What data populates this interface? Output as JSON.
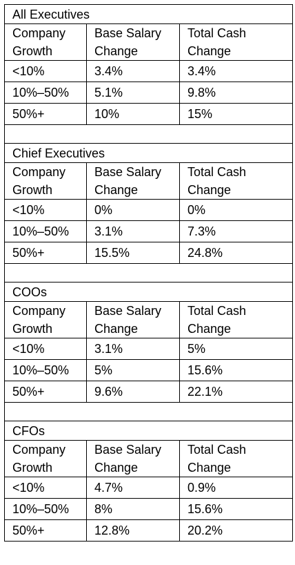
{
  "sections": [
    {
      "title": "All Executives",
      "headers": [
        "Company Growth",
        "Base Salary Change",
        "Total Cash Change"
      ],
      "headers_lines": [
        [
          "Company",
          "Growth"
        ],
        [
          "Base Salary",
          "Change"
        ],
        [
          "Total Cash",
          "Change"
        ]
      ],
      "rows": [
        [
          "<10%",
          "3.4%",
          "3.4%"
        ],
        [
          "10%–50%",
          "5.1%",
          "9.8%"
        ],
        [
          "50%+",
          "10%",
          "15%"
        ]
      ]
    },
    {
      "title": "Chief Executives",
      "headers": [
        "Company Growth",
        "Base Salary Change",
        "Total Cash Change"
      ],
      "headers_lines": [
        [
          "Company",
          "Growth"
        ],
        [
          "Base Salary",
          "Change"
        ],
        [
          "Total Cash",
          "Change"
        ]
      ],
      "rows": [
        [
          "<10%",
          "0%",
          "0%"
        ],
        [
          "10%–50%",
          "3.1%",
          "7.3%"
        ],
        [
          "50%+",
          "15.5%",
          "24.8%"
        ]
      ]
    },
    {
      "title": "COOs",
      "headers": [
        "Company Growth",
        "Base Salary Change",
        "Total Cash Change"
      ],
      "headers_lines": [
        [
          "Company",
          "Growth"
        ],
        [
          "Base Salary",
          "Change"
        ],
        [
          "Total Cash",
          "Change"
        ]
      ],
      "rows": [
        [
          "<10%",
          "3.1%",
          "5%"
        ],
        [
          "10%–50%",
          "5%",
          "15.6%"
        ],
        [
          "50%+",
          "9.6%",
          "22.1%"
        ]
      ]
    },
    {
      "title": "CFOs",
      "headers": [
        "Company Growth",
        "Base Salary Change",
        "Total Cash Change"
      ],
      "headers_lines": [
        [
          "Company",
          "Growth"
        ],
        [
          "Base Salary",
          "Change"
        ],
        [
          "Total Cash",
          "Change"
        ]
      ],
      "rows": [
        [
          "<10%",
          "4.7%",
          "0.9%"
        ],
        [
          "10%–50%",
          "8%",
          "15.6%"
        ],
        [
          "50%+",
          "12.8%",
          "20.2%"
        ]
      ]
    }
  ]
}
